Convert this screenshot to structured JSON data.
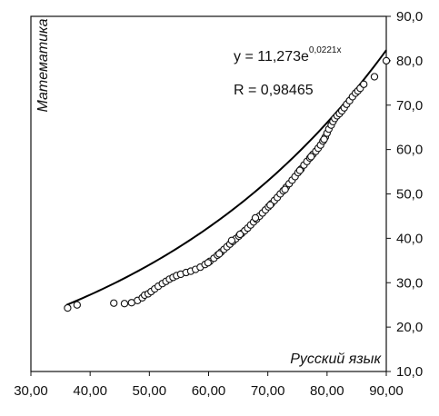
{
  "chart_data": {
    "type": "scatter",
    "xlabel": "Русский язык",
    "ylabel": "Математика",
    "xlim": [
      30,
      90
    ],
    "ylim": [
      10,
      90
    ],
    "x_tick_labels": [
      "30,00",
      "40,00",
      "50,00",
      "60,00",
      "70,00",
      "80,00",
      "90,00"
    ],
    "y_tick_labels": [
      "10,0",
      "20,0",
      "30,0",
      "40,0",
      "50,0",
      "60,0",
      "70,0",
      "80,0",
      "90,0"
    ],
    "y_axis_side": "right",
    "grid": false,
    "legend": "none",
    "marker": "open-circle",
    "trendline": {
      "type": "exponential",
      "a": 11.273,
      "b": 0.0221,
      "x_range": [
        36,
        90
      ],
      "equation_prefix": "y = 11,273e",
      "equation_exponent": "0,0221x",
      "r_text": "R = 0,98465"
    },
    "points": [
      [
        36.2,
        24.3
      ],
      [
        37.8,
        25.0
      ],
      [
        44.0,
        25.4
      ],
      [
        45.8,
        25.3
      ],
      [
        47.0,
        25.5
      ],
      [
        48.0,
        26.0
      ],
      [
        48.8,
        26.6
      ],
      [
        49.2,
        27.2
      ],
      [
        49.8,
        27.5
      ],
      [
        50.3,
        28.0
      ],
      [
        50.9,
        28.6
      ],
      [
        51.5,
        29.2
      ],
      [
        52.2,
        29.8
      ],
      [
        52.8,
        30.3
      ],
      [
        53.4,
        30.8
      ],
      [
        54.0,
        31.2
      ],
      [
        54.6,
        31.6
      ],
      [
        55.3,
        31.9
      ],
      [
        56.2,
        32.3
      ],
      [
        57.0,
        32.6
      ],
      [
        57.8,
        33.0
      ],
      [
        58.6,
        33.5
      ],
      [
        59.4,
        34.1
      ],
      [
        60.2,
        34.8
      ],
      [
        60.9,
        35.5
      ],
      [
        61.5,
        36.2
      ],
      [
        62.1,
        36.9
      ],
      [
        62.6,
        37.5
      ],
      [
        63.1,
        38.1
      ],
      [
        63.6,
        38.7
      ],
      [
        64.1,
        39.3
      ],
      [
        64.6,
        39.9
      ],
      [
        65.1,
        40.5
      ],
      [
        65.6,
        41.1
      ],
      [
        66.1,
        41.7
      ],
      [
        66.6,
        42.3
      ],
      [
        67.1,
        43.0
      ],
      [
        67.6,
        43.7
      ],
      [
        68.1,
        44.3
      ],
      [
        68.6,
        45.0
      ],
      [
        69.1,
        45.7
      ],
      [
        69.6,
        46.4
      ],
      [
        70.1,
        47.1
      ],
      [
        70.6,
        47.8
      ],
      [
        71.1,
        48.5
      ],
      [
        71.6,
        49.2
      ],
      [
        72.1,
        50.0
      ],
      [
        72.6,
        50.7
      ],
      [
        73.1,
        51.5
      ],
      [
        73.6,
        52.3
      ],
      [
        74.1,
        53.1
      ],
      [
        74.6,
        53.9
      ],
      [
        75.1,
        54.8
      ],
      [
        75.6,
        55.6
      ],
      [
        76.1,
        56.5
      ],
      [
        76.6,
        57.3
      ],
      [
        77.1,
        58.1
      ],
      [
        77.6,
        58.9
      ],
      [
        78.1,
        59.6
      ],
      [
        78.5,
        60.3
      ],
      [
        78.9,
        61.0
      ],
      [
        79.3,
        61.9
      ],
      [
        79.7,
        62.8
      ],
      [
        80.0,
        63.7
      ],
      [
        80.3,
        64.6
      ],
      [
        80.7,
        65.5
      ],
      [
        81.0,
        66.3
      ],
      [
        81.3,
        67.0
      ],
      [
        81.7,
        67.6
      ],
      [
        82.1,
        68.1
      ],
      [
        82.5,
        68.7
      ],
      [
        82.9,
        69.4
      ],
      [
        83.3,
        70.2
      ],
      [
        83.8,
        71.0
      ],
      [
        84.3,
        71.9
      ],
      [
        84.8,
        72.7
      ],
      [
        85.2,
        73.2
      ],
      [
        85.6,
        73.8
      ],
      [
        86.2,
        74.7
      ],
      [
        88.0,
        76.4
      ],
      [
        90.0,
        80.0
      ],
      [
        65.3,
        40.9
      ],
      [
        67.9,
        44.6
      ],
      [
        70.4,
        47.5
      ],
      [
        72.9,
        51.0
      ],
      [
        75.4,
        55.3
      ],
      [
        77.3,
        58.4
      ],
      [
        79.5,
        62.3
      ],
      [
        63.9,
        39.5
      ],
      [
        61.8,
        36.5
      ],
      [
        59.9,
        34.5
      ]
    ]
  }
}
